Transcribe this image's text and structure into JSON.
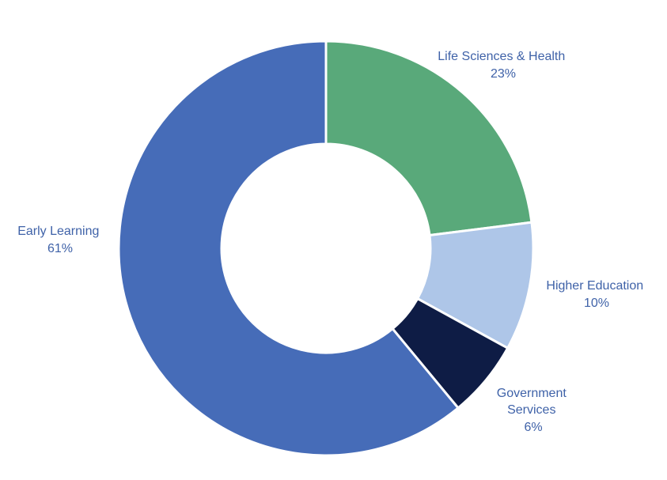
{
  "chart_data": {
    "type": "pie",
    "donut": true,
    "title": "",
    "slices": [
      {
        "label": "Life Sciences & Health",
        "value": 23,
        "value_label": "23%",
        "color": "#59a97a"
      },
      {
        "label": "Higher Education",
        "value": 10,
        "value_label": "10%",
        "color": "#aec6e8"
      },
      {
        "label": "Government Services",
        "value": 6,
        "value_label": "6%",
        "color": "#0e1c45"
      },
      {
        "label": "Early Learning",
        "value": 61,
        "value_label": "61%",
        "color": "#466cb8"
      }
    ],
    "label_color": "#3f62a8",
    "legend": "none",
    "start_angle": "top, clockwise"
  }
}
